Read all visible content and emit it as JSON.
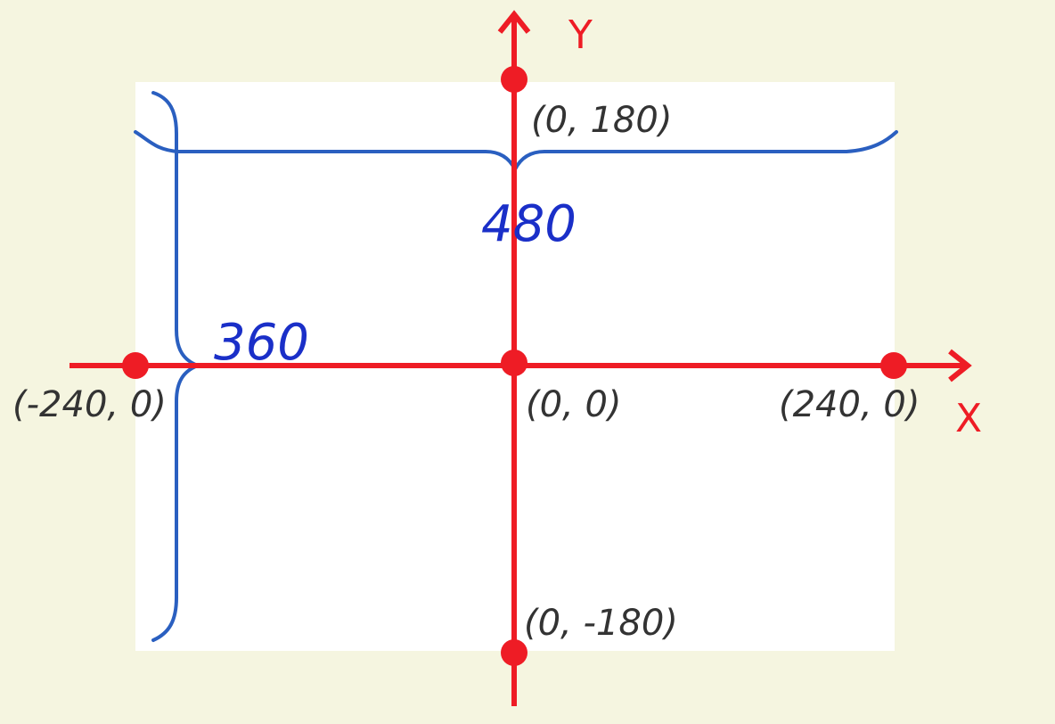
{
  "diagram": {
    "axes": {
      "x_label": "X",
      "y_label": "Y"
    },
    "dimensions": {
      "width_label": "480",
      "height_label": "360"
    },
    "points": {
      "top": "(0, 180)",
      "origin": "(0, 0)",
      "left": "(-240, 0)",
      "right": "(240, 0)",
      "bottom": "(0, -180)"
    },
    "colors": {
      "background": "#f5f5e0",
      "stage": "#ffffff",
      "axis": "#ee1c25",
      "brace": "#2a5fc0",
      "dimension_text": "#1a2fc8",
      "coord_text": "#333333"
    }
  }
}
